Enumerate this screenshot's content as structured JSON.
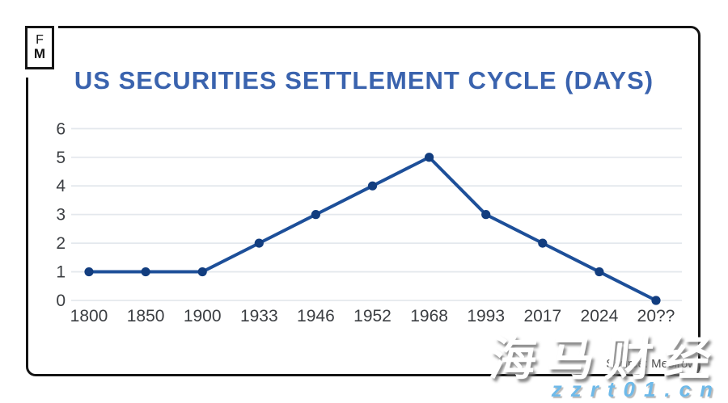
{
  "logo": {
    "top": "F",
    "bottom": "M"
  },
  "source": "Source: Mesirow",
  "watermarks": {
    "primary": "海马财经",
    "secondary": "zzrt01.cn"
  },
  "colors": {
    "title": "#3a63ae",
    "line": "#1d4f99",
    "marker": "#123d7f",
    "gridline": "#e4e8ed",
    "axis_label": "#3b3e42",
    "card_border": "#141414",
    "watermark_url": "#6fbae9"
  },
  "chart_data": {
    "type": "line",
    "title": "US SECURITIES SETTLEMENT CYCLE (DAYS)",
    "categories": [
      "1800",
      "1850",
      "1900",
      "1933",
      "1946",
      "1952",
      "1968",
      "1993",
      "2017",
      "2024",
      "20??"
    ],
    "values": [
      1,
      1,
      1,
      2,
      3,
      4,
      5,
      3,
      2,
      1,
      0
    ],
    "xlabel": "",
    "ylabel": "",
    "ylim": [
      0,
      6
    ],
    "yticks": [
      0,
      1,
      2,
      3,
      4,
      5,
      6
    ],
    "grid": "horizontal",
    "legend": "none"
  }
}
